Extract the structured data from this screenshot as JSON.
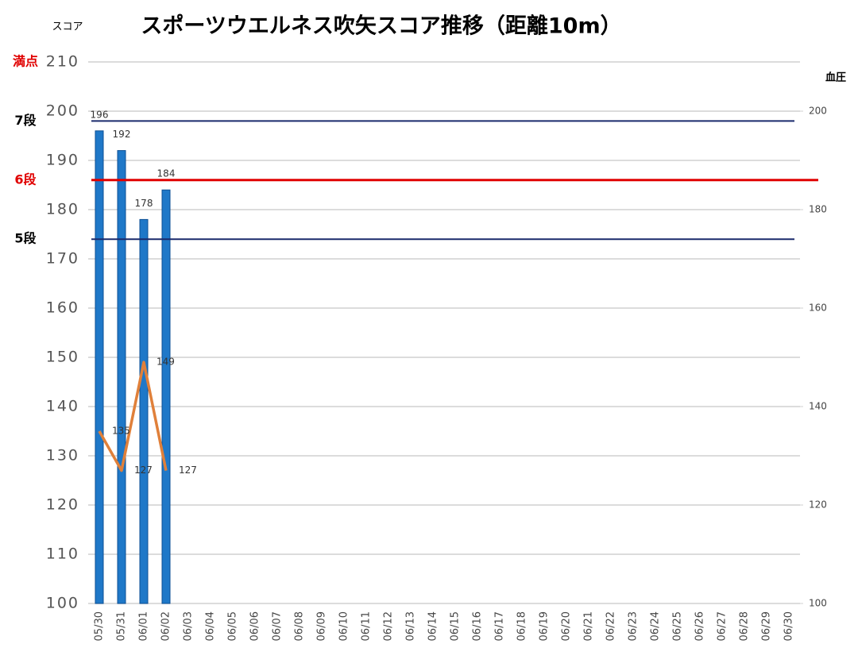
{
  "chart_data": {
    "type": "bar",
    "title": "スポーツウエルネス吹矢スコア推移（距離10m）",
    "y_label": "スコア",
    "y2_label": "血圧",
    "categories": [
      "05/30",
      "05/31",
      "06/01",
      "06/02",
      "06/03",
      "06/04",
      "06/05",
      "06/06",
      "06/07",
      "06/08",
      "06/09",
      "06/10",
      "06/11",
      "06/12",
      "06/13",
      "06/14",
      "06/15",
      "06/16",
      "06/17",
      "06/18",
      "06/19",
      "06/20",
      "06/21",
      "06/22",
      "06/23",
      "06/24",
      "06/25",
      "06/26",
      "06/27",
      "06/28",
      "06/29",
      "06/30"
    ],
    "series": [
      {
        "type": "bar",
        "color": "#1f78c8",
        "values": [
          196,
          192,
          178,
          184,
          null,
          null,
          null,
          null,
          null,
          null,
          null,
          null,
          null,
          null,
          null,
          null,
          null,
          null,
          null,
          null,
          null,
          null,
          null,
          null,
          null,
          null,
          null,
          null,
          null,
          null,
          null,
          null
        ]
      },
      {
        "type": "line",
        "axis": "y2",
        "color": "#e0803a",
        "values": [
          135,
          127,
          149,
          127,
          null,
          null,
          null,
          null,
          null,
          null,
          null,
          null,
          null,
          null,
          null,
          null,
          null,
          null,
          null,
          null,
          null,
          null,
          null,
          null,
          null,
          null,
          null,
          null,
          null,
          null,
          null,
          null
        ]
      }
    ],
    "ylim": [
      100,
      210
    ],
    "yticks": [
      100,
      110,
      120,
      130,
      140,
      150,
      160,
      170,
      180,
      190,
      200,
      210
    ],
    "y2lim": [
      100,
      210
    ],
    "y2ticks": [
      100,
      120,
      140,
      160,
      180,
      200
    ],
    "grid": true,
    "reference_lines": [
      {
        "label": "満点",
        "value": 210,
        "label_color": "#e00000"
      },
      {
        "label": "7段",
        "value": 198,
        "label_color": "#000000",
        "line_color": "#1a2a6c"
      },
      {
        "label": "6段",
        "value": 186,
        "label_color": "#e00000",
        "line_color": "#e00000"
      },
      {
        "label": "5段",
        "value": 174,
        "label_color": "#000000",
        "line_color": "#1a2a6c"
      }
    ]
  }
}
